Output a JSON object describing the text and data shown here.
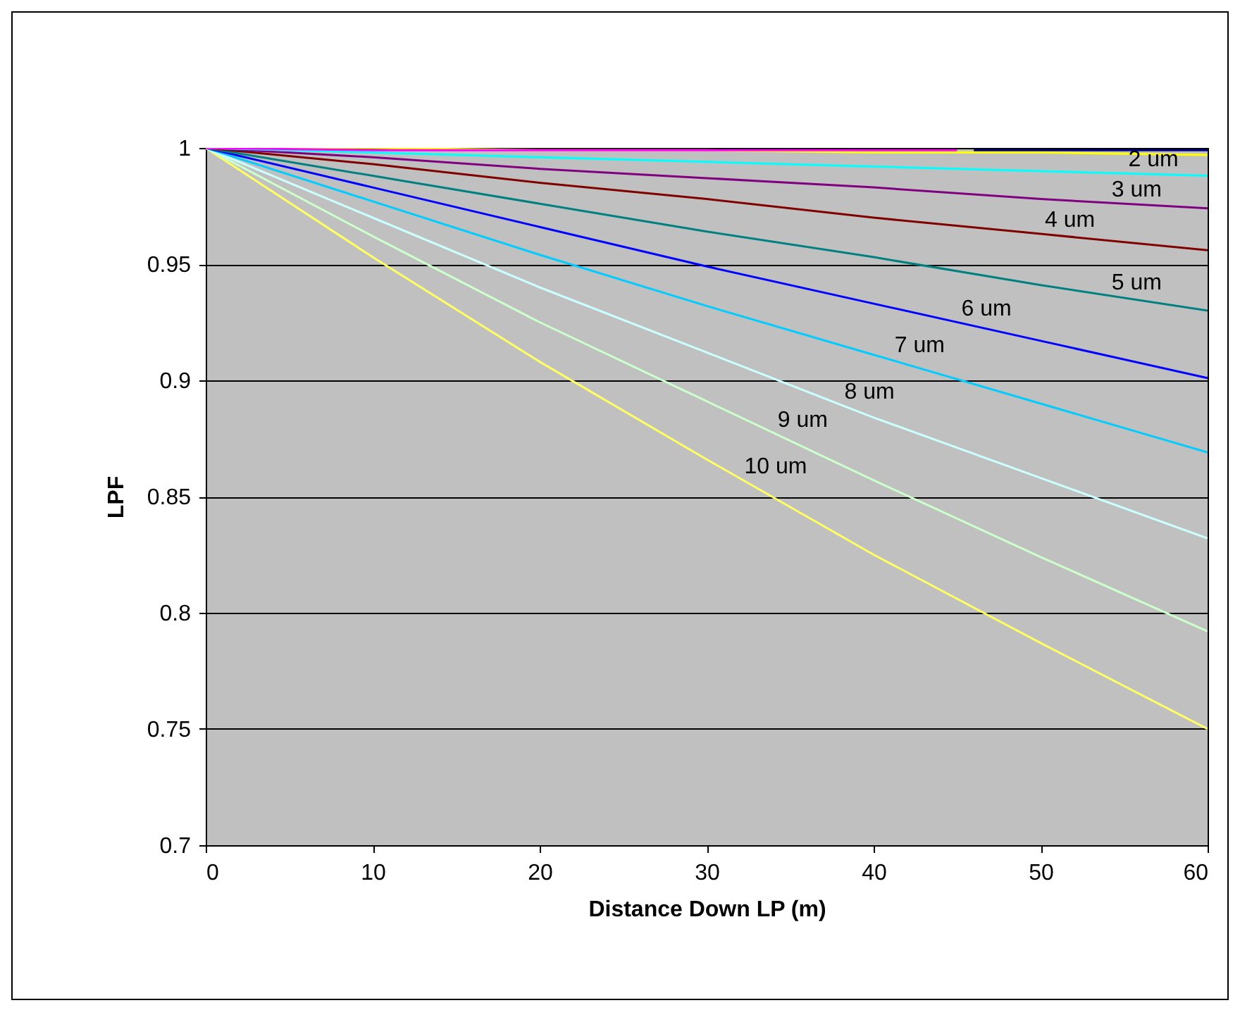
{
  "chart_data": {
    "type": "line",
    "xlabel": "Distance Down LP (m)",
    "ylabel": "LPF",
    "x": [
      0,
      10,
      20,
      30,
      40,
      50,
      60
    ],
    "xlim": [
      0,
      60
    ],
    "xticks": [
      0,
      10,
      20,
      30,
      40,
      50,
      60
    ],
    "ylim": [
      0.7,
      1
    ],
    "yticks": [
      0.7,
      0.75,
      0.8,
      0.85,
      0.9,
      0.95,
      1
    ],
    "grid": "y",
    "legend": false,
    "marker": "none",
    "line_style": "solid",
    "series": [
      {
        "color": "#ffff66",
        "values": [
          1,
          0.953,
          0.908,
          0.866,
          0.825,
          0.787,
          0.75
        ]
      },
      {
        "color": "#ccffcc",
        "values": [
          1,
          0.962,
          0.925,
          0.891,
          0.857,
          0.824,
          0.792
        ]
      },
      {
        "color": "#ccffff",
        "values": [
          1,
          0.97,
          0.94,
          0.912,
          0.884,
          0.858,
          0.832
        ]
      },
      {
        "color": "#00ccff",
        "values": [
          1,
          0.977,
          0.954,
          0.932,
          0.911,
          0.89,
          0.869
        ]
      },
      {
        "color": "#0000ff",
        "values": [
          1,
          0.983,
          0.966,
          0.949,
          0.933,
          0.917,
          0.901
        ]
      },
      {
        "color": "#008080",
        "values": [
          1,
          0.988,
          0.976,
          0.964,
          0.953,
          0.941,
          0.93
        ]
      },
      {
        "color": "#800000",
        "values": [
          1,
          0.993,
          0.985,
          0.978,
          0.97,
          0.963,
          0.956
        ]
      },
      {
        "color": "#800080",
        "values": [
          1,
          0.996,
          0.991,
          0.987,
          0.983,
          0.978,
          0.974
        ]
      },
      {
        "color": "#00ffff",
        "values": [
          1,
          0.998,
          0.996,
          0.994,
          0.992,
          0.99,
          0.988
        ]
      },
      {
        "color": "#ffff00",
        "values": [
          1,
          1,
          0.999,
          0.999,
          0.998,
          0.998,
          0.997
        ]
      },
      {
        "color": "#000080",
        "x": [
          46,
          50,
          60
        ],
        "values": [
          0.999,
          0.999,
          0.999
        ]
      },
      {
        "color": "#ff00ff",
        "x": [
          0,
          10,
          20,
          30,
          40,
          45
        ],
        "values": [
          1,
          0.999,
          0.999,
          0.999,
          0.999,
          0.999
        ]
      }
    ],
    "annotations": [
      {
        "text": "2 um",
        "x": 55,
        "y": 0.989
      },
      {
        "text": "3 um",
        "x": 54,
        "y": 0.976
      },
      {
        "text": "4 um",
        "x": 50,
        "y": 0.963
      },
      {
        "text": "5 um",
        "x": 54,
        "y": 0.936
      },
      {
        "text": "6 um",
        "x": 45,
        "y": 0.925
      },
      {
        "text": "7 um",
        "x": 41,
        "y": 0.909
      },
      {
        "text": "8 um",
        "x": 38,
        "y": 0.889
      },
      {
        "text": "9 um",
        "x": 34,
        "y": 0.877
      },
      {
        "text": "10 um",
        "x": 32,
        "y": 0.857
      }
    ]
  }
}
